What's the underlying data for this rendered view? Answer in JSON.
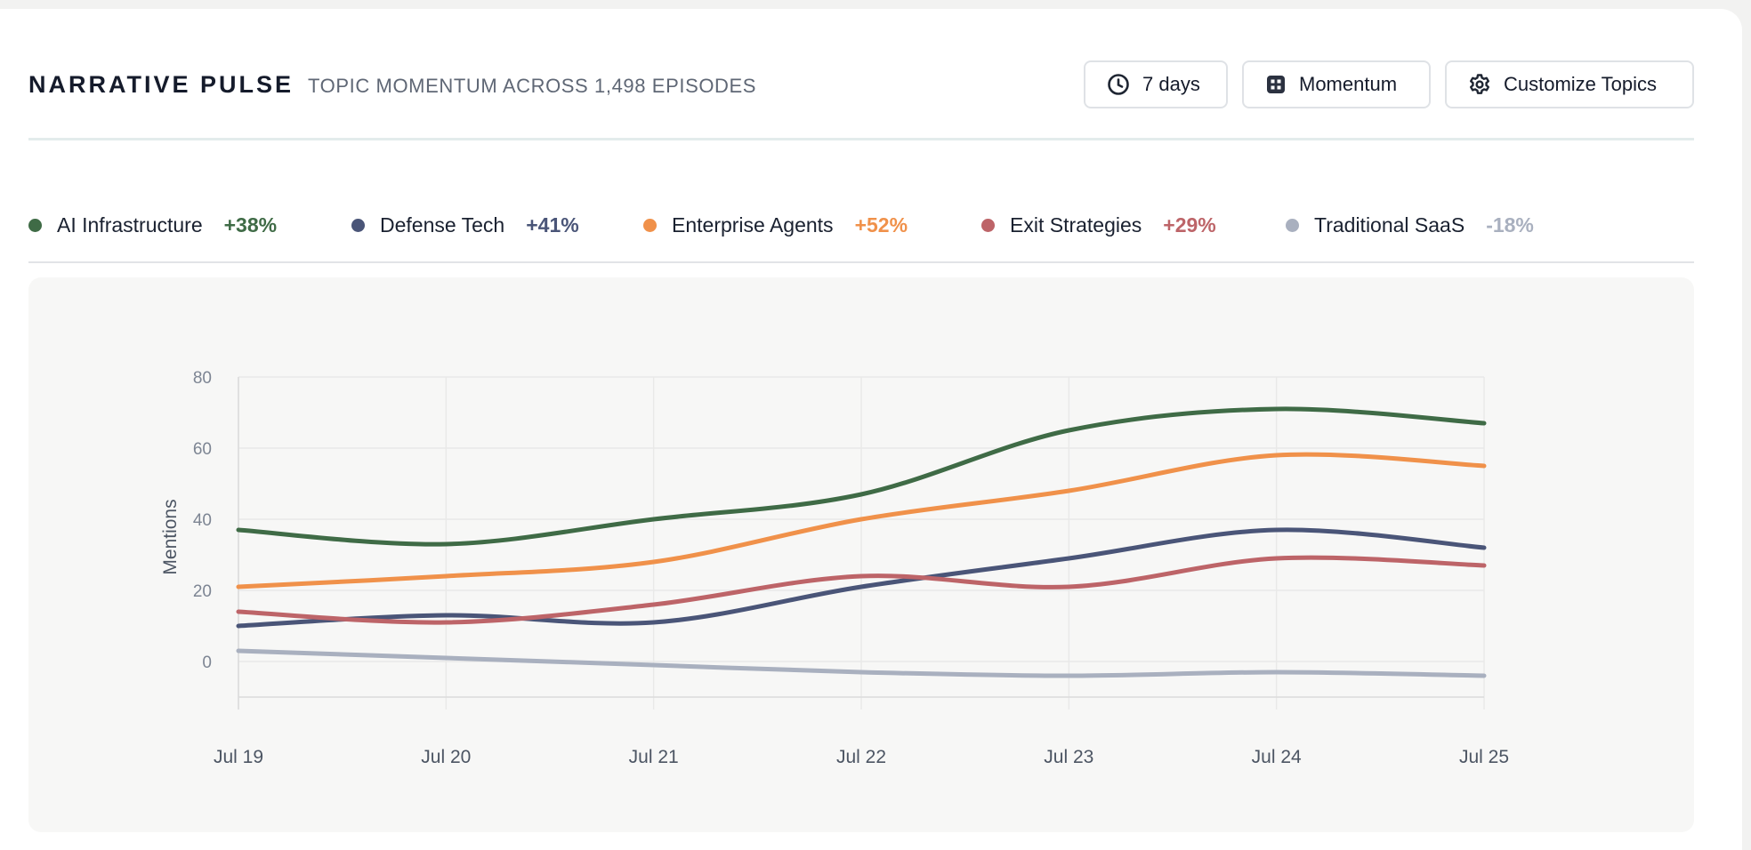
{
  "header": {
    "title": "NARRATIVE PULSE",
    "subtitle": "TOPIC MOMENTUM ACROSS 1,498 EPISODES"
  },
  "toolbar": {
    "range_label": "7 days",
    "range_icon": "clock-icon",
    "view_label": "Momentum",
    "view_icon": "grid-icon",
    "customize_label": "Customize Topics",
    "customize_icon": "gear-icon"
  },
  "legend": [
    {
      "label": "AI Infrastructure",
      "change": "+38%",
      "color": "#3f6b46"
    },
    {
      "label": "Defense Tech",
      "change": "+41%",
      "color": "#4a5578"
    },
    {
      "label": "Enterprise Agents",
      "change": "+52%",
      "color": "#f0914a"
    },
    {
      "label": "Exit Strategies",
      "change": "+29%",
      "color": "#bd6468"
    },
    {
      "label": "Traditional SaaS",
      "change": "-18%",
      "color": "#a9b0bf"
    }
  ],
  "chart_data": {
    "type": "line",
    "ylabel": "Mentions",
    "xlabel": "",
    "x": [
      "Jul 19",
      "Jul 20",
      "Jul 21",
      "Jul 22",
      "Jul 23",
      "Jul 24",
      "Jul 25"
    ],
    "y_ticks": [
      "80",
      "60",
      "40",
      "20",
      "0"
    ],
    "ylim": [
      -10,
      80
    ],
    "grid": true,
    "smooth": true,
    "series": [
      {
        "name": "AI Infrastructure",
        "color": "#3f6b46",
        "values": [
          37,
          33,
          40,
          47,
          65,
          71,
          67
        ]
      },
      {
        "name": "Defense Tech",
        "color": "#4a5578",
        "values": [
          10,
          13,
          11,
          21,
          29,
          37,
          32
        ]
      },
      {
        "name": "Enterprise Agents",
        "color": "#f0914a",
        "values": [
          21,
          24,
          28,
          40,
          48,
          58,
          55
        ]
      },
      {
        "name": "Exit Strategies",
        "color": "#bd6468",
        "values": [
          14,
          11,
          16,
          24,
          21,
          29,
          27
        ]
      },
      {
        "name": "Traditional SaaS",
        "color": "#a9b0bf",
        "values": [
          3,
          1,
          -1,
          -3,
          -4,
          -3,
          -4
        ]
      }
    ]
  }
}
